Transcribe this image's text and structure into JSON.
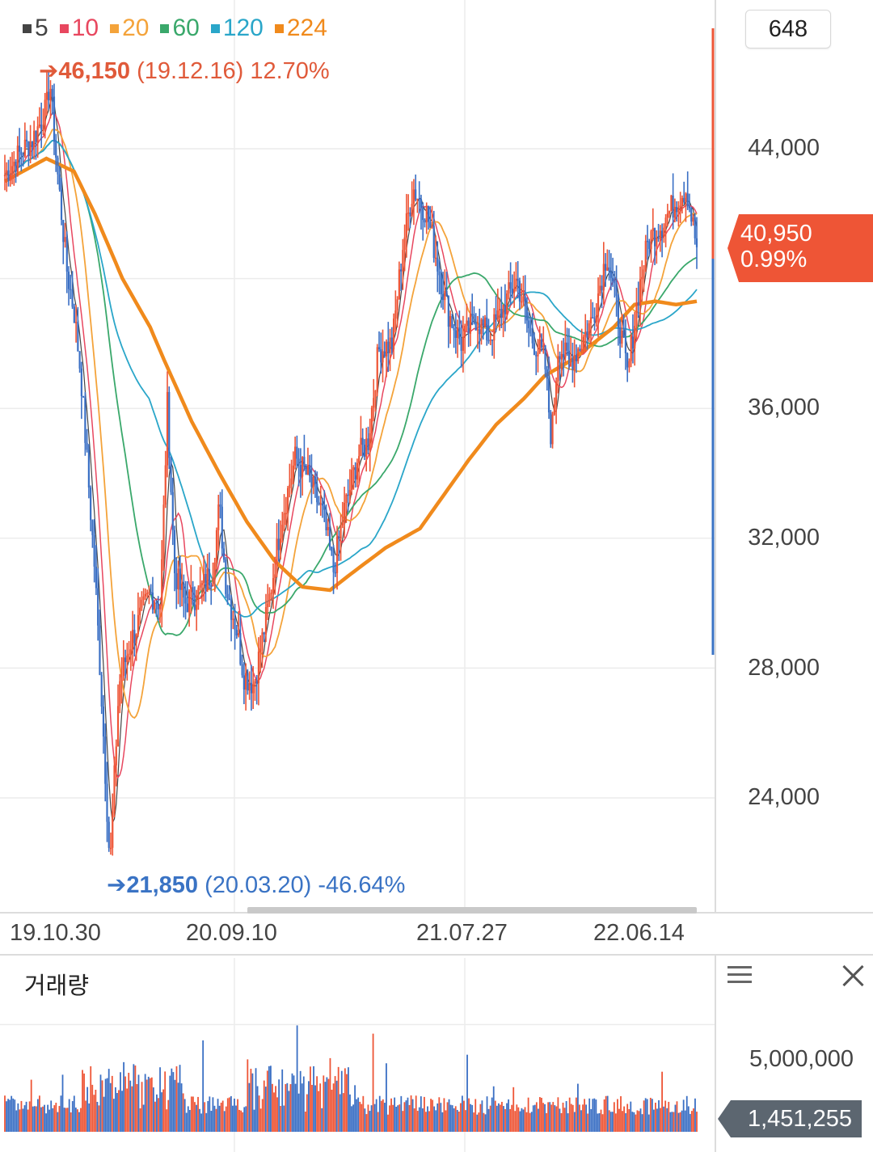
{
  "chart_data": {
    "type": "line",
    "title": "",
    "legend": [
      {
        "label": "5",
        "color": "#444444"
      },
      {
        "label": "10",
        "color": "#e8475f"
      },
      {
        "label": "20",
        "color": "#f4a33a"
      },
      {
        "label": "60",
        "color": "#3aa86b"
      },
      {
        "label": "120",
        "color": "#2aa6c9"
      },
      {
        "label": "224",
        "color": "#f08a1c"
      }
    ],
    "y_ticks": [
      "44,000",
      "36,000",
      "32,000",
      "28,000",
      "24,000"
    ],
    "y_tick_values": [
      44000,
      36000,
      32000,
      28000,
      24000
    ],
    "ylim": [
      21000,
      47000
    ],
    "x_ticks": [
      "19.10.30",
      "20.09.10",
      "21.07.27",
      "22.06.14"
    ],
    "grid": true,
    "high": {
      "value": "46,150",
      "date": "(19.12.16)",
      "change": "12.70%"
    },
    "low": {
      "value": "21,850",
      "date": "(20.03.20)",
      "change": "-46.64%"
    },
    "current_price": "40,950",
    "current_change": "0.99%",
    "ma224_curve": [
      [
        0,
        43000
      ],
      [
        0.06,
        43700
      ],
      [
        0.1,
        43300
      ],
      [
        0.13,
        42000
      ],
      [
        0.17,
        40000
      ],
      [
        0.21,
        38500
      ],
      [
        0.23,
        37500
      ],
      [
        0.27,
        35600
      ],
      [
        0.31,
        34000
      ],
      [
        0.35,
        32500
      ],
      [
        0.39,
        31300
      ],
      [
        0.43,
        30500
      ],
      [
        0.47,
        30400
      ],
      [
        0.5,
        30900
      ],
      [
        0.55,
        31700
      ],
      [
        0.6,
        32300
      ],
      [
        0.63,
        33200
      ],
      [
        0.67,
        34400
      ],
      [
        0.71,
        35500
      ],
      [
        0.75,
        36300
      ],
      [
        0.78,
        37000
      ],
      [
        0.82,
        37500
      ],
      [
        0.85,
        38000
      ],
      [
        0.88,
        38500
      ],
      [
        0.91,
        39200
      ],
      [
        0.94,
        39300
      ],
      [
        0.97,
        39200
      ],
      [
        1.0,
        39300
      ]
    ],
    "price_path": [
      [
        0,
        43200
      ],
      [
        0.02,
        43800
      ],
      [
        0.04,
        44300
      ],
      [
        0.06,
        45200
      ],
      [
        0.065,
        46150
      ],
      [
        0.075,
        43500
      ],
      [
        0.09,
        40200
      ],
      [
        0.1,
        39000
      ],
      [
        0.11,
        37000
      ],
      [
        0.12,
        34000
      ],
      [
        0.13,
        31000
      ],
      [
        0.14,
        27000
      ],
      [
        0.152,
        21850
      ],
      [
        0.165,
        27500
      ],
      [
        0.18,
        28700
      ],
      [
        0.2,
        29800
      ],
      [
        0.21,
        30300
      ],
      [
        0.225,
        30000
      ],
      [
        0.235,
        36200
      ],
      [
        0.245,
        31000
      ],
      [
        0.26,
        30000
      ],
      [
        0.28,
        30300
      ],
      [
        0.3,
        31000
      ],
      [
        0.31,
        33000
      ],
      [
        0.32,
        30500
      ],
      [
        0.335,
        29200
      ],
      [
        0.345,
        27800
      ],
      [
        0.36,
        27500
      ],
      [
        0.38,
        29800
      ],
      [
        0.4,
        32600
      ],
      [
        0.42,
        34500
      ],
      [
        0.44,
        33800
      ],
      [
        0.46,
        32700
      ],
      [
        0.475,
        31000
      ],
      [
        0.49,
        32800
      ],
      [
        0.51,
        34500
      ],
      [
        0.525,
        35000
      ],
      [
        0.54,
        37800
      ],
      [
        0.56,
        38000
      ],
      [
        0.575,
        41000
      ],
      [
        0.59,
        42800
      ],
      [
        0.61,
        42000
      ],
      [
        0.625,
        40500
      ],
      [
        0.64,
        39000
      ],
      [
        0.66,
        38000
      ],
      [
        0.68,
        38800
      ],
      [
        0.7,
        38200
      ],
      [
        0.72,
        39100
      ],
      [
        0.74,
        40000
      ],
      [
        0.76,
        38200
      ],
      [
        0.78,
        37500
      ],
      [
        0.79,
        35000
      ],
      [
        0.8,
        38000
      ],
      [
        0.815,
        37400
      ],
      [
        0.83,
        37900
      ],
      [
        0.85,
        38800
      ],
      [
        0.87,
        40800
      ],
      [
        0.885,
        39000
      ],
      [
        0.9,
        37000
      ],
      [
        0.915,
        39500
      ],
      [
        0.93,
        41200
      ],
      [
        0.95,
        41700
      ],
      [
        0.97,
        42400
      ],
      [
        0.985,
        42800
      ],
      [
        1.0,
        40950
      ]
    ]
  },
  "count_badge": "648",
  "volume": {
    "title": "거래량",
    "tick": "5,000,000",
    "tick_value": 5000000,
    "ymax": 6600000,
    "current": "1,451,255"
  }
}
